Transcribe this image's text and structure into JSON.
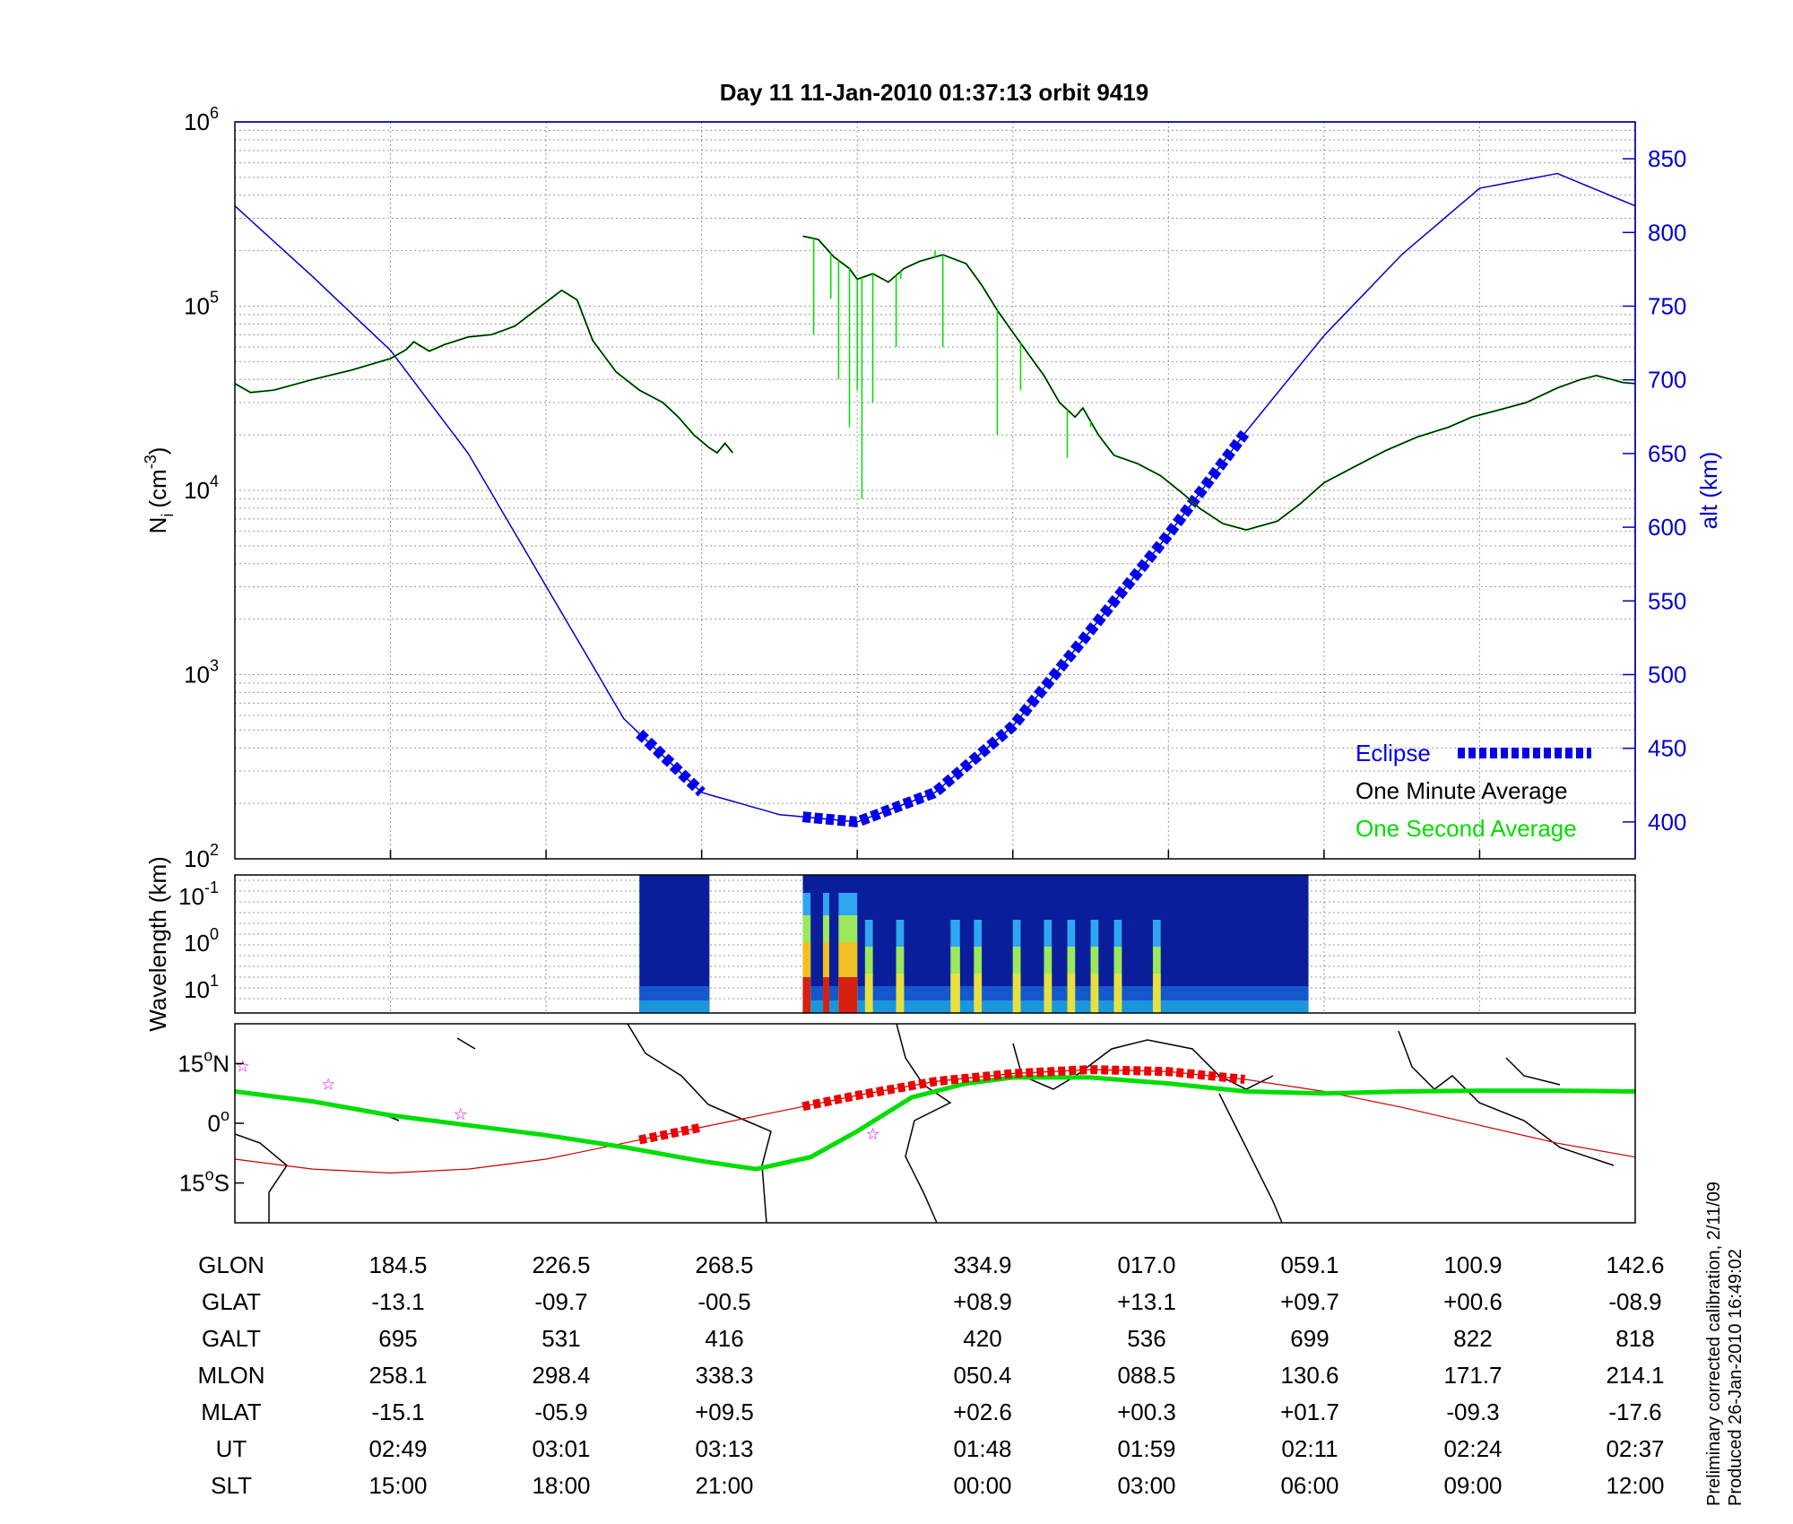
{
  "title": "Day 11  11-Jan-2010 01:37:13   orbit 9419",
  "footer": {
    "line1": "Preliminary corrected calibration, 2/11/09",
    "line2": "Produced 26-Jan-2010 16:49:02"
  },
  "colors": {
    "background": "#ffffff",
    "axis": "#000000",
    "altitude_line": "#0000cc",
    "eclipse": "#0000ee",
    "one_minute": "#000000",
    "one_second": "#00dd00",
    "track": "#00dd00",
    "track_eclipse": "#ee0000",
    "mag_equator": "#cc0000",
    "star": "#dd00dd"
  },
  "chart_data": [
    {
      "id": "density",
      "type": "line",
      "ylabel_left": {
        "base": "N",
        "sub": "i",
        "unit": "(cm",
        "sup": "-3",
        "close": ")"
      },
      "ylabel_right": "alt (km)",
      "y_scale": "log",
      "ylim": [
        100,
        1000000
      ],
      "y_ticks": [
        {
          "base": "10",
          "exp": "2"
        },
        {
          "base": "10",
          "exp": "3"
        },
        {
          "base": "10",
          "exp": "4"
        },
        {
          "base": "10",
          "exp": "5"
        },
        {
          "base": "10",
          "exp": "6"
        }
      ],
      "y2lim": [
        375,
        875
      ],
      "y2_ticks": [
        "400",
        "450",
        "500",
        "550",
        "600",
        "650",
        "700",
        "750",
        "800",
        "850"
      ],
      "x_ticks_count": 9,
      "grid": true,
      "legend": {
        "placement": "bottom-right",
        "items": [
          {
            "label": "Eclipse",
            "color": "#0000ee",
            "style": "dashed-thick"
          },
          {
            "label": "One Minute Average",
            "color": "#000000",
            "style": "none"
          },
          {
            "label": "One Second Average",
            "color": "#00dd00",
            "style": "none"
          }
        ]
      },
      "series": [
        {
          "name": "One Minute Average",
          "segments": [
            [
              [
                0,
                38000
              ],
              [
                0.1,
                34000
              ],
              [
                0.25,
                35000
              ],
              [
                0.5,
                40000
              ],
              [
                0.75,
                45000
              ],
              [
                1,
                52000
              ],
              [
                1.1,
                58000
              ],
              [
                1.15,
                64000
              ],
              [
                1.25,
                57000
              ],
              [
                1.35,
                62000
              ],
              [
                1.5,
                68000
              ],
              [
                1.65,
                70000
              ],
              [
                1.8,
                78000
              ],
              [
                2,
                105000
              ],
              [
                2.1,
                122000
              ],
              [
                2.2,
                108000
              ],
              [
                2.3,
                65000
              ],
              [
                2.45,
                44000
              ],
              [
                2.6,
                35000
              ],
              [
                2.75,
                30000
              ],
              [
                2.85,
                25000
              ],
              [
                2.95,
                20000
              ],
              [
                3.05,
                17000
              ],
              [
                3.1,
                16000
              ],
              [
                3.15,
                18000
              ],
              [
                3.2,
                16000
              ]
            ],
            [
              [
                3.65,
                240000
              ],
              [
                3.75,
                230000
              ],
              [
                3.85,
                185000
              ],
              [
                3.95,
                160000
              ],
              [
                4.0,
                140000
              ],
              [
                4.1,
                150000
              ],
              [
                4.2,
                135000
              ],
              [
                4.3,
                160000
              ],
              [
                4.4,
                175000
              ],
              [
                4.55,
                190000
              ],
              [
                4.7,
                170000
              ],
              [
                4.8,
                130000
              ],
              [
                4.9,
                95000
              ],
              [
                5.0,
                72000
              ],
              [
                5.1,
                55000
              ],
              [
                5.2,
                42000
              ],
              [
                5.3,
                30000
              ],
              [
                5.4,
                25000
              ],
              [
                5.45,
                28000
              ],
              [
                5.55,
                20000
              ],
              [
                5.65,
                15500
              ],
              [
                5.8,
                14000
              ],
              [
                5.95,
                12000
              ],
              [
                6.1,
                9500
              ],
              [
                6.2,
                8000
              ],
              [
                6.35,
                6600
              ],
              [
                6.5,
                6100
              ],
              [
                6.7,
                6800
              ],
              [
                6.85,
                8500
              ],
              [
                7.0,
                11000
              ],
              [
                7.2,
                13500
              ],
              [
                7.4,
                16500
              ],
              [
                7.6,
                19500
              ],
              [
                7.8,
                22000
              ],
              [
                7.95,
                25000
              ],
              [
                8.1,
                27000
              ],
              [
                8.3,
                30000
              ],
              [
                8.5,
                36000
              ],
              [
                8.65,
                40000
              ],
              [
                8.75,
                42000
              ],
              [
                8.85,
                40000
              ],
              [
                8.92,
                38500
              ],
              [
                9.0,
                38000
              ]
            ]
          ]
        },
        {
          "name": "One Second Average",
          "spikes": [
            [
              3.72,
              70000
            ],
            [
              3.83,
              110000
            ],
            [
              3.88,
              40000
            ],
            [
              3.95,
              22000
            ],
            [
              4.0,
              35000
            ],
            [
              4.03,
              9000
            ],
            [
              4.1,
              30000
            ],
            [
              4.25,
              60000
            ],
            [
              4.28,
              140000
            ],
            [
              4.5,
              200000
            ],
            [
              4.55,
              60000
            ],
            [
              4.9,
              20000
            ],
            [
              5.05,
              35000
            ],
            [
              5.35,
              15000
            ],
            [
              5.5,
              22000
            ]
          ]
        },
        {
          "name": "alt (km)",
          "axis": "right",
          "x": [
            0,
            0.5,
            1,
            1.5,
            2,
            2.5,
            3,
            3.5,
            4,
            4.5,
            5,
            5.5,
            6,
            6.5,
            7,
            7.5,
            8,
            8.5,
            9
          ],
          "values": [
            818,
            770,
            720,
            650,
            560,
            470,
            420,
            405,
            400,
            420,
            465,
            530,
            595,
            665,
            730,
            785,
            830,
            840,
            818
          ]
        }
      ],
      "eclipse_segments": [
        [
          2.6,
          3.0
        ],
        [
          3.65,
          6.5
        ]
      ]
    },
    {
      "id": "wavelength",
      "type": "heatmap",
      "ylabel": "Wavelength (km)",
      "y_ticks": [
        {
          "base": "10",
          "exp": "-1"
        },
        {
          "base": "10",
          "exp": "0"
        },
        {
          "base": "10",
          "exp": "1"
        }
      ],
      "colormap": "jet",
      "blocks": [
        [
          2.6,
          3.05
        ],
        [
          3.65,
          6.9
        ]
      ],
      "hot_bands": [
        [
          3.65,
          3.7
        ],
        [
          3.78,
          3.82
        ],
        [
          3.88,
          4.0
        ],
        [
          4.05,
          4.1
        ],
        [
          4.25,
          4.3
        ],
        [
          4.6,
          4.66
        ],
        [
          4.75,
          4.8
        ],
        [
          5.0,
          5.05
        ],
        [
          5.2,
          5.25
        ],
        [
          5.35,
          5.4
        ],
        [
          5.5,
          5.55
        ],
        [
          5.65,
          5.7
        ],
        [
          5.9,
          5.95
        ]
      ]
    },
    {
      "id": "map",
      "type": "line",
      "y_ticks": [
        {
          "value": "15",
          "deg": "o",
          "hem": "N"
        },
        {
          "value": "0",
          "deg": "o",
          "hem": ""
        },
        {
          "value": "15",
          "deg": "o",
          "hem": "S"
        }
      ],
      "ylim": [
        -25,
        25
      ],
      "track": [
        [
          0,
          8
        ],
        [
          0.5,
          5.5
        ],
        [
          1,
          2
        ],
        [
          1.5,
          -0.5
        ],
        [
          2,
          -3
        ],
        [
          2.5,
          -6
        ],
        [
          3,
          -9.5
        ],
        [
          3.35,
          -11.5
        ],
        [
          3.7,
          -8.5
        ],
        [
          4.0,
          -2
        ],
        [
          4.35,
          6.5
        ],
        [
          4.7,
          10
        ],
        [
          5.0,
          11.5
        ],
        [
          5.5,
          11.5
        ],
        [
          6,
          10
        ],
        [
          6.5,
          8
        ],
        [
          7,
          7.5
        ],
        [
          7.5,
          8
        ],
        [
          8,
          8.2
        ],
        [
          8.5,
          8.2
        ],
        [
          9,
          8
        ]
      ],
      "track_eclipse_segments": [
        [
          2.6,
          3.0
        ],
        [
          3.65,
          6.5
        ]
      ],
      "mag_equator": [
        [
          0,
          -9
        ],
        [
          0.5,
          -11.5
        ],
        [
          1,
          -12.5
        ],
        [
          1.5,
          -11.5
        ],
        [
          2,
          -9
        ],
        [
          2.5,
          -5
        ],
        [
          3,
          -1
        ],
        [
          3.5,
          3
        ],
        [
          4,
          7
        ],
        [
          4.5,
          10.5
        ],
        [
          5,
          12.5
        ],
        [
          5.5,
          13.5
        ],
        [
          6,
          13
        ],
        [
          6.5,
          11
        ],
        [
          7,
          8
        ],
        [
          7.5,
          4
        ],
        [
          8,
          -0.5
        ],
        [
          8.5,
          -5
        ],
        [
          9,
          -8.5
        ]
      ],
      "stars": [
        [
          0.05,
          14.5
        ],
        [
          0.6,
          10
        ],
        [
          1.45,
          2.5
        ],
        [
          4.1,
          -2.5
        ]
      ]
    }
  ],
  "table": {
    "labels": [
      "GLON",
      "GLAT",
      "GALT",
      "MLON",
      "MLAT",
      "UT",
      "SLT"
    ],
    "columns": [
      [
        "184.5",
        "-13.1",
        "695",
        "258.1",
        "-15.1",
        "02:49",
        "15:00"
      ],
      [
        "226.5",
        "-09.7",
        "531",
        "298.4",
        "-05.9",
        "03:01",
        "18:00"
      ],
      [
        "268.5",
        "-00.5",
        "416",
        "338.3",
        "+09.5",
        "03:13",
        "21:00"
      ],
      [
        "334.9",
        "+08.9",
        "420",
        "050.4",
        "+02.6",
        "01:48",
        "00:00"
      ],
      [
        "017.0",
        "+13.1",
        "536",
        "088.5",
        "+00.3",
        "01:59",
        "03:00"
      ],
      [
        "059.1",
        "+09.7",
        "699",
        "130.6",
        "+01.7",
        "02:11",
        "06:00"
      ],
      [
        "100.9",
        "+00.6",
        "822",
        "171.7",
        "-09.3",
        "02:24",
        "09:00"
      ],
      [
        "142.6",
        "-08.9",
        "818",
        "214.1",
        "-17.6",
        "02:37",
        "12:00"
      ]
    ]
  }
}
